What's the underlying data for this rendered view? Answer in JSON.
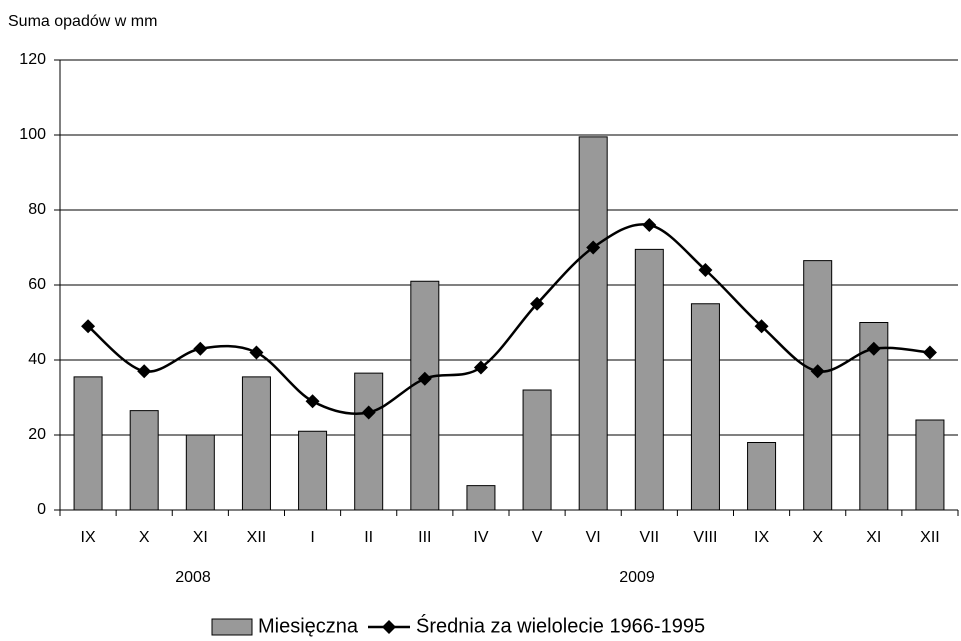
{
  "chart_data": {
    "type": "bar_line",
    "y_axis_label": "Suma opadów w mm",
    "categories": [
      "IX",
      "X",
      "XI",
      "XII",
      "I",
      "II",
      "III",
      "IV",
      "V",
      "VI",
      "VII",
      "VIII",
      "IX",
      "X",
      "XI",
      "XII"
    ],
    "group_labels": [
      "2008",
      "2009"
    ],
    "series": [
      {
        "name": "Miesięczna",
        "color": "#999999",
        "kind": "bar",
        "values": [
          35.5,
          26.5,
          20,
          35.5,
          21,
          36.5,
          61,
          6.5,
          32,
          99.5,
          69.5,
          55,
          18,
          66.5,
          50,
          24
        ]
      },
      {
        "name": "Średnia za wielolecie 1966-1995",
        "color": "#000000",
        "kind": "line",
        "values": [
          49,
          37,
          43,
          42,
          29,
          26,
          35,
          38,
          55,
          70,
          76,
          64,
          49,
          37,
          43,
          42
        ]
      }
    ],
    "ylim": [
      0,
      120
    ],
    "yticks": [
      0,
      20,
      40,
      60,
      80,
      100,
      120
    ],
    "grid": true,
    "legend": "bottom"
  }
}
